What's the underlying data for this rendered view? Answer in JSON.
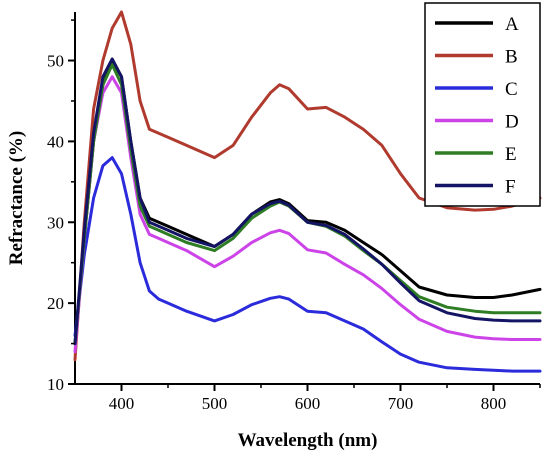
{
  "chart_data": {
    "type": "line",
    "title": "",
    "xlabel": "Wavelength (nm)",
    "ylabel": "Refractance (%)",
    "xlim": [
      350,
      850
    ],
    "ylim": [
      10,
      56
    ],
    "x_ticks": [
      400,
      500,
      600,
      700,
      800
    ],
    "y_ticks": [
      10,
      20,
      30,
      40,
      50
    ],
    "grid": false,
    "legend_position": "top-right",
    "x": [
      350,
      360,
      370,
      380,
      390,
      400,
      410,
      420,
      430,
      440,
      450,
      470,
      500,
      520,
      540,
      560,
      570,
      580,
      600,
      620,
      640,
      660,
      680,
      700,
      720,
      750,
      780,
      800,
      820,
      850
    ],
    "series": [
      {
        "name": "A",
        "color": "#000000",
        "values": [
          15,
          28,
          40,
          47,
          50,
          48,
          40,
          33,
          30.5,
          30,
          29.5,
          28.5,
          27,
          28.5,
          31,
          32.5,
          32.8,
          32.3,
          30.2,
          30,
          29,
          27.5,
          26,
          24,
          22,
          21,
          20.7,
          20.7,
          21,
          21.7
        ]
      },
      {
        "name": "B",
        "color": "#b03a2e",
        "values": [
          13,
          30,
          44,
          50,
          54,
          56,
          52,
          45,
          41.5,
          41,
          40.5,
          39.5,
          38,
          39.5,
          43,
          46,
          47,
          46.5,
          44,
          44.2,
          43,
          41.5,
          39.5,
          36,
          33,
          31.8,
          31.5,
          31.6,
          32,
          33
        ]
      },
      {
        "name": "C",
        "color": "#2b2bdc",
        "values": [
          16,
          26,
          33,
          37,
          38,
          36,
          31,
          25,
          21.5,
          20.5,
          20,
          19,
          17.8,
          18.6,
          19.8,
          20.6,
          20.8,
          20.5,
          19,
          18.8,
          17.8,
          16.8,
          15.2,
          13.7,
          12.7,
          12,
          11.8,
          11.7,
          11.6,
          11.6
        ]
      },
      {
        "name": "D",
        "color": "#cc44e8",
        "values": [
          14,
          28,
          40,
          46,
          48,
          46,
          38,
          31,
          28.5,
          28,
          27.5,
          26.5,
          24.5,
          25.8,
          27.5,
          28.7,
          29,
          28.6,
          26.6,
          26.2,
          24.8,
          23.5,
          21.8,
          19.8,
          18,
          16.5,
          15.8,
          15.6,
          15.5,
          15.5
        ]
      },
      {
        "name": "E",
        "color": "#2e7d24",
        "values": [
          15,
          28,
          40,
          47,
          49.5,
          47,
          39,
          32,
          29.5,
          29,
          28.5,
          27.5,
          26.5,
          28,
          30.5,
          32,
          32.5,
          32,
          30,
          29.5,
          28.3,
          26.5,
          24.8,
          22.8,
          20.8,
          19.5,
          19,
          18.8,
          18.8,
          18.8
        ]
      },
      {
        "name": "F",
        "color": "#141464",
        "values": [
          15,
          29,
          41,
          48,
          50.2,
          48,
          40,
          33,
          30,
          29.5,
          29,
          28,
          27,
          28.5,
          31,
          32.3,
          32.6,
          32.1,
          30,
          29.6,
          28.5,
          26.7,
          24.8,
          22.5,
          20.3,
          18.8,
          18.1,
          17.9,
          17.8,
          17.8
        ]
      }
    ]
  }
}
